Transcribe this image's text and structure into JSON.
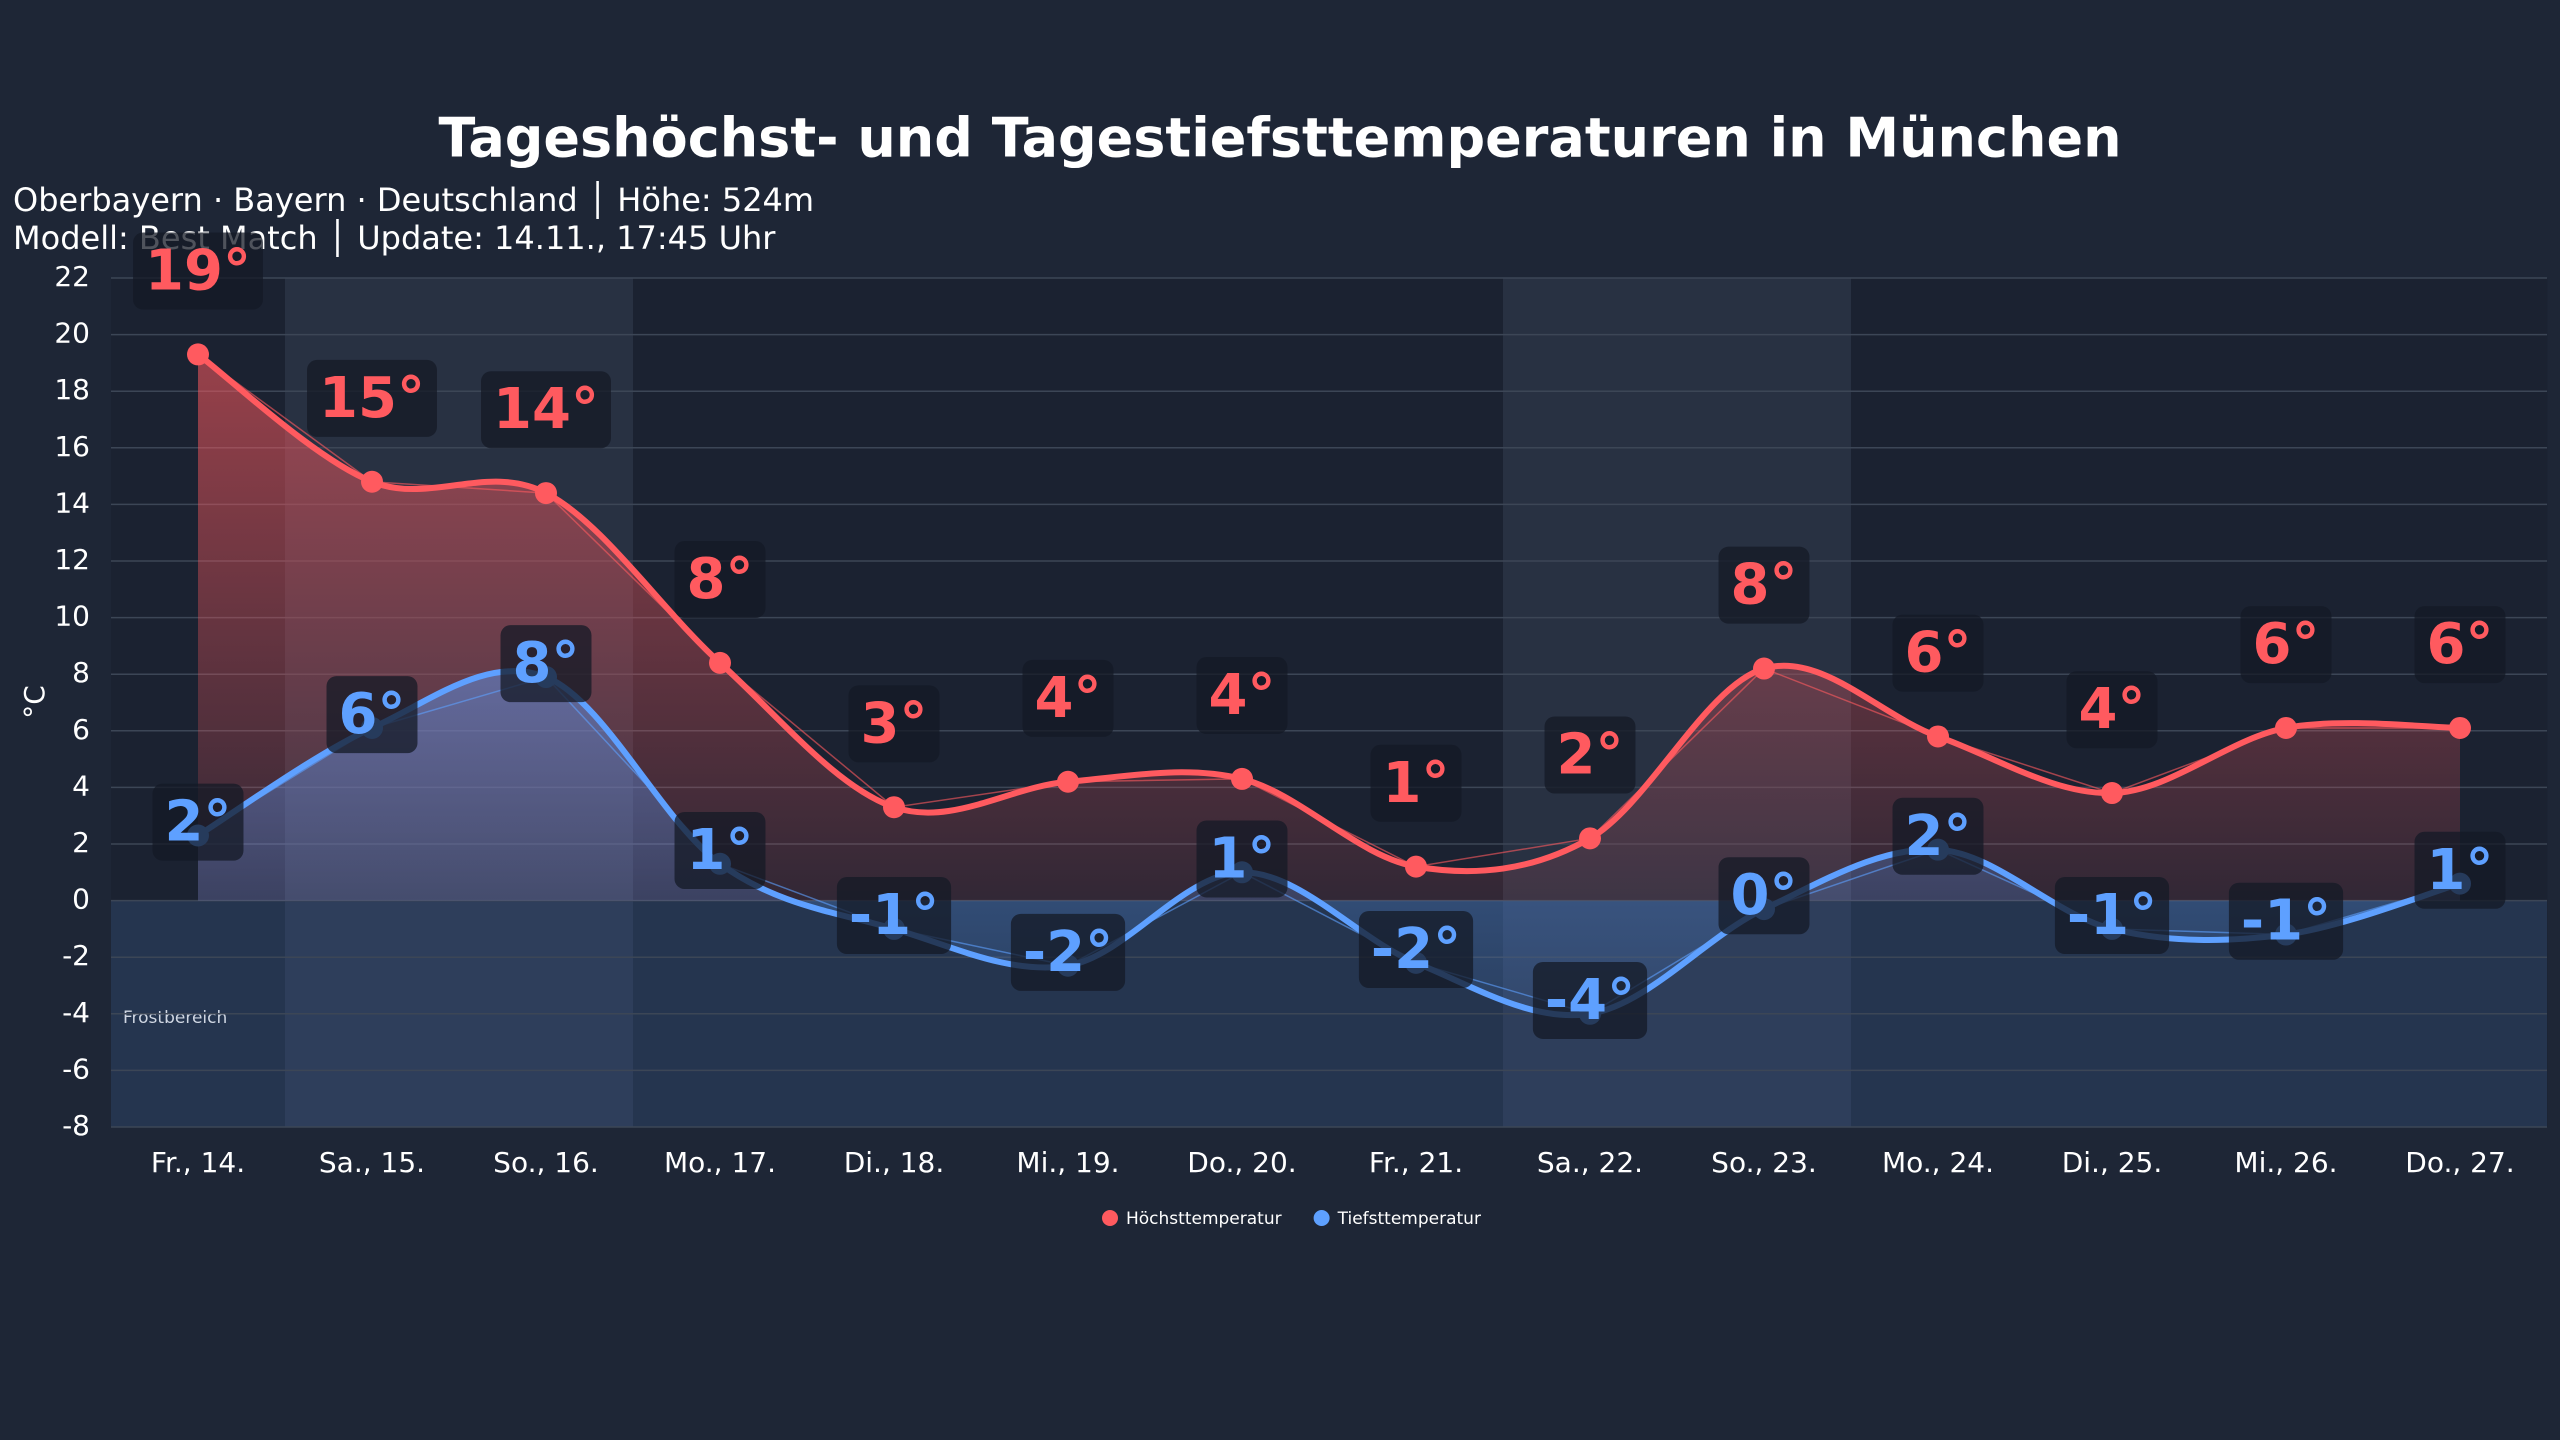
{
  "chart_data": {
    "type": "line",
    "title": "Tageshöchst- und Tagestiefsttemperaturen in München",
    "subtitle": [
      "Oberbayern · Bayern · Deutschland │ Höhe: 524m",
      "Modell: Best Match │ Update: 14.11., 17:45 Uhr"
    ],
    "y_label": "°C",
    "annotation": "Frostbereich",
    "categories": [
      "Fr., 14.",
      "Sa., 15.",
      "So., 16.",
      "Mo., 17.",
      "Di., 18.",
      "Mi., 19.",
      "Do., 20.",
      "Fr., 21.",
      "Sa., 22.",
      "So., 23.",
      "Mo., 24.",
      "Di., 25.",
      "Mi., 26.",
      "Do., 27."
    ],
    "series": [
      {
        "name": "Höchsttemperatur",
        "color": "#ff5a5f",
        "values": [
          19.3,
          14.8,
          14.4,
          8.4,
          3.3,
          4.2,
          4.3,
          1.2,
          2.2,
          8.2,
          5.8,
          3.8,
          6.1,
          6.1
        ],
        "value_labels": [
          "19°",
          "15°",
          "14°",
          "8°",
          "3°",
          "4°",
          "4°",
          "1°",
          "2°",
          "8°",
          "6°",
          "4°",
          "6°",
          "6°"
        ]
      },
      {
        "name": "Tiefsttemperatur",
        "color": "#5ea0ff",
        "values": [
          2.3,
          6.1,
          7.9,
          1.3,
          -1.0,
          -2.3,
          1.0,
          -2.2,
          -4.0,
          -0.3,
          1.8,
          -1.0,
          -1.2,
          0.6
        ],
        "value_labels": [
          "2°",
          "6°",
          "8°",
          "1°",
          "-1°",
          "-2°",
          "1°",
          "-2°",
          "-4°",
          "0°",
          "2°",
          "-1°",
          "-1°",
          "1°"
        ]
      }
    ],
    "ylim": [
      -8,
      22
    ],
    "yticks": [
      -8,
      -6,
      -4,
      -2,
      0,
      2,
      4,
      6,
      8,
      10,
      12,
      14,
      16,
      18,
      20,
      22
    ],
    "grid": true
  }
}
